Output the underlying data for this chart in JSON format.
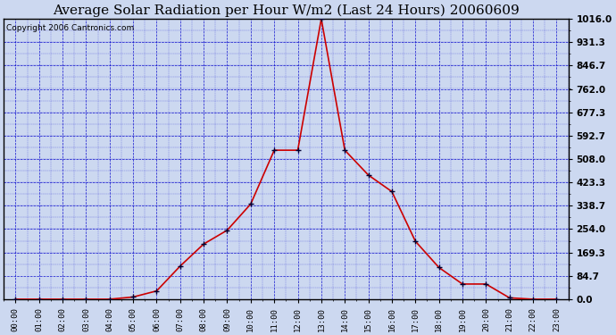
{
  "title": "Average Solar Radiation per Hour W/m2 (Last 24 Hours) 20060609",
  "copyright": "Copyright 2006 Cantronics.com",
  "hours": [
    "00:00",
    "01:00",
    "02:00",
    "03:00",
    "04:00",
    "05:00",
    "06:00",
    "07:00",
    "08:00",
    "09:00",
    "10:00",
    "11:00",
    "12:00",
    "13:00",
    "14:00",
    "15:00",
    "16:00",
    "17:00",
    "18:00",
    "19:00",
    "20:00",
    "21:00",
    "22:00",
    "23:00"
  ],
  "values": [
    0.0,
    0.0,
    0.0,
    0.0,
    0.0,
    8.0,
    30.0,
    120.0,
    200.0,
    250.0,
    345.0,
    540.0,
    540.0,
    1016.0,
    540.0,
    450.0,
    390.0,
    210.0,
    115.0,
    55.0,
    55.0,
    5.0,
    0.0,
    0.0
  ],
  "line_color": "#cc0000",
  "marker_color": "#000033",
  "bg_color": "#ccd8f0",
  "plot_bg": "#ccd8f0",
  "grid_color": "#0000cc",
  "border_color": "#000000",
  "yticks": [
    0.0,
    84.7,
    169.3,
    254.0,
    338.7,
    423.3,
    508.0,
    592.7,
    677.3,
    762.0,
    846.7,
    931.3,
    1016.0
  ],
  "ymax": 1016.0,
  "title_fontsize": 11,
  "copyright_fontsize": 6.5,
  "fig_width": 6.9,
  "fig_height": 3.75
}
